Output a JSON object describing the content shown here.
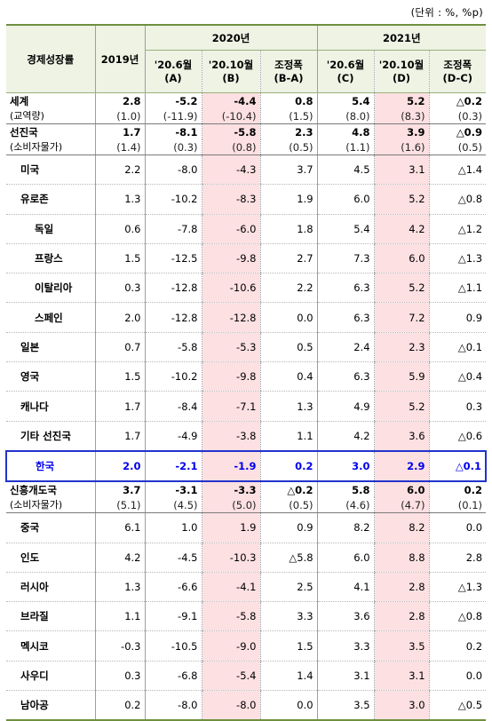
{
  "unit_note": "(단위 : %, %p)",
  "headers": {
    "category": "경제성장률",
    "y2019": "2019년",
    "g2020": "2020년",
    "g2021": "2021년",
    "c1": [
      "'20.6월",
      "(A)"
    ],
    "c2": [
      "'20.10월",
      "(B)"
    ],
    "c3": [
      "조정폭",
      "(B-A)"
    ],
    "c4": [
      "'20.6월",
      "(C)"
    ],
    "c5": [
      "'20.10월",
      "(D)"
    ],
    "c6": [
      "조정폭",
      "(D-C)"
    ]
  },
  "world": {
    "label": "세계",
    "sublabel": "(교역량)",
    "values": [
      "2.8",
      "-5.2",
      "-4.4",
      "0.8",
      "5.4",
      "5.2",
      "△0.2"
    ],
    "sub_values": [
      "(1.0)",
      "(-11.9)",
      "(-10.4)",
      "(1.5)",
      "(8.0)",
      "(8.3)",
      "(0.3)"
    ]
  },
  "advanced": {
    "label": "선진국",
    "sublabel": "(소비자물가)",
    "values": [
      "1.7",
      "-8.1",
      "-5.8",
      "2.3",
      "4.8",
      "3.9",
      "△0.9"
    ],
    "sub_values": [
      "(1.4)",
      "(0.3)",
      "(0.8)",
      "(0.5)",
      "(1.1)",
      "(1.6)",
      "(0.5)"
    ]
  },
  "advanced_rows": [
    {
      "label": "미국",
      "values": [
        "2.2",
        "-8.0",
        "-4.3",
        "3.7",
        "4.5",
        "3.1",
        "△1.4"
      ]
    },
    {
      "label": "유로존",
      "values": [
        "1.3",
        "-10.2",
        "-8.3",
        "1.9",
        "6.0",
        "5.2",
        "△0.8"
      ]
    },
    {
      "label": "독일",
      "values": [
        "0.6",
        "-7.8",
        "-6.0",
        "1.8",
        "5.4",
        "4.2",
        "△1.2"
      ]
    },
    {
      "label": "프랑스",
      "values": [
        "1.5",
        "-12.5",
        "-9.8",
        "2.7",
        "7.3",
        "6.0",
        "△1.3"
      ]
    },
    {
      "label": "이탈리아",
      "values": [
        "0.3",
        "-12.8",
        "-10.6",
        "2.2",
        "6.3",
        "5.2",
        "△1.1"
      ]
    },
    {
      "label": "스페인",
      "values": [
        "2.0",
        "-12.8",
        "-12.8",
        "0.0",
        "6.3",
        "7.2",
        "0.9"
      ]
    },
    {
      "label": "일본",
      "values": [
        "0.7",
        "-5.8",
        "-5.3",
        "0.5",
        "2.4",
        "2.3",
        "△0.1"
      ]
    },
    {
      "label": "영국",
      "values": [
        "1.5",
        "-10.2",
        "-9.8",
        "0.4",
        "6.3",
        "5.9",
        "△0.4"
      ]
    },
    {
      "label": "캐나다",
      "values": [
        "1.7",
        "-8.4",
        "-7.1",
        "1.3",
        "4.9",
        "5.2",
        "0.3"
      ]
    },
    {
      "label": "기타 선진국",
      "values": [
        "1.7",
        "-4.9",
        "-3.8",
        "1.1",
        "4.2",
        "3.6",
        "△0.6"
      ]
    }
  ],
  "korea": {
    "label": "한국",
    "values": [
      "2.0",
      "-2.1",
      "-1.9",
      "0.2",
      "3.0",
      "2.9",
      "△0.1"
    ]
  },
  "emerging": {
    "label": "신흥개도국",
    "sublabel": "(소비자물가)",
    "values": [
      "3.7",
      "-3.1",
      "-3.3",
      "△0.2",
      "5.8",
      "6.0",
      "0.2"
    ],
    "sub_values": [
      "(5.1)",
      "(4.5)",
      "(5.0)",
      "(0.5)",
      "(4.6)",
      "(4.7)",
      "(0.1)"
    ]
  },
  "emerging_rows": [
    {
      "label": "중국",
      "values": [
        "6.1",
        "1.0",
        "1.9",
        "0.9",
        "8.2",
        "8.2",
        "0.0"
      ]
    },
    {
      "label": "인도",
      "values": [
        "4.2",
        "-4.5",
        "-10.3",
        "△5.8",
        "6.0",
        "8.8",
        "2.8"
      ]
    },
    {
      "label": "러시아",
      "values": [
        "1.3",
        "-6.6",
        "-4.1",
        "2.5",
        "4.1",
        "2.8",
        "△1.3"
      ]
    },
    {
      "label": "브라질",
      "values": [
        "1.1",
        "-9.1",
        "-5.8",
        "3.3",
        "3.6",
        "2.8",
        "△0.8"
      ]
    },
    {
      "label": "멕시코",
      "values": [
        "-0.3",
        "-10.5",
        "-9.0",
        "1.5",
        "3.3",
        "3.5",
        "0.2"
      ]
    },
    {
      "label": "사우디",
      "values": [
        "0.3",
        "-6.8",
        "-5.4",
        "1.4",
        "3.1",
        "3.1",
        "0.0"
      ]
    },
    {
      "label": "남아공",
      "values": [
        "0.2",
        "-8.0",
        "-8.0",
        "0.0",
        "3.5",
        "3.0",
        "△0.5"
      ]
    }
  ],
  "colors": {
    "header_bg": "#eef3e4",
    "highlight": "#fde0e2",
    "korea_border": "#2233cc",
    "korea_text": "#0000ee"
  }
}
